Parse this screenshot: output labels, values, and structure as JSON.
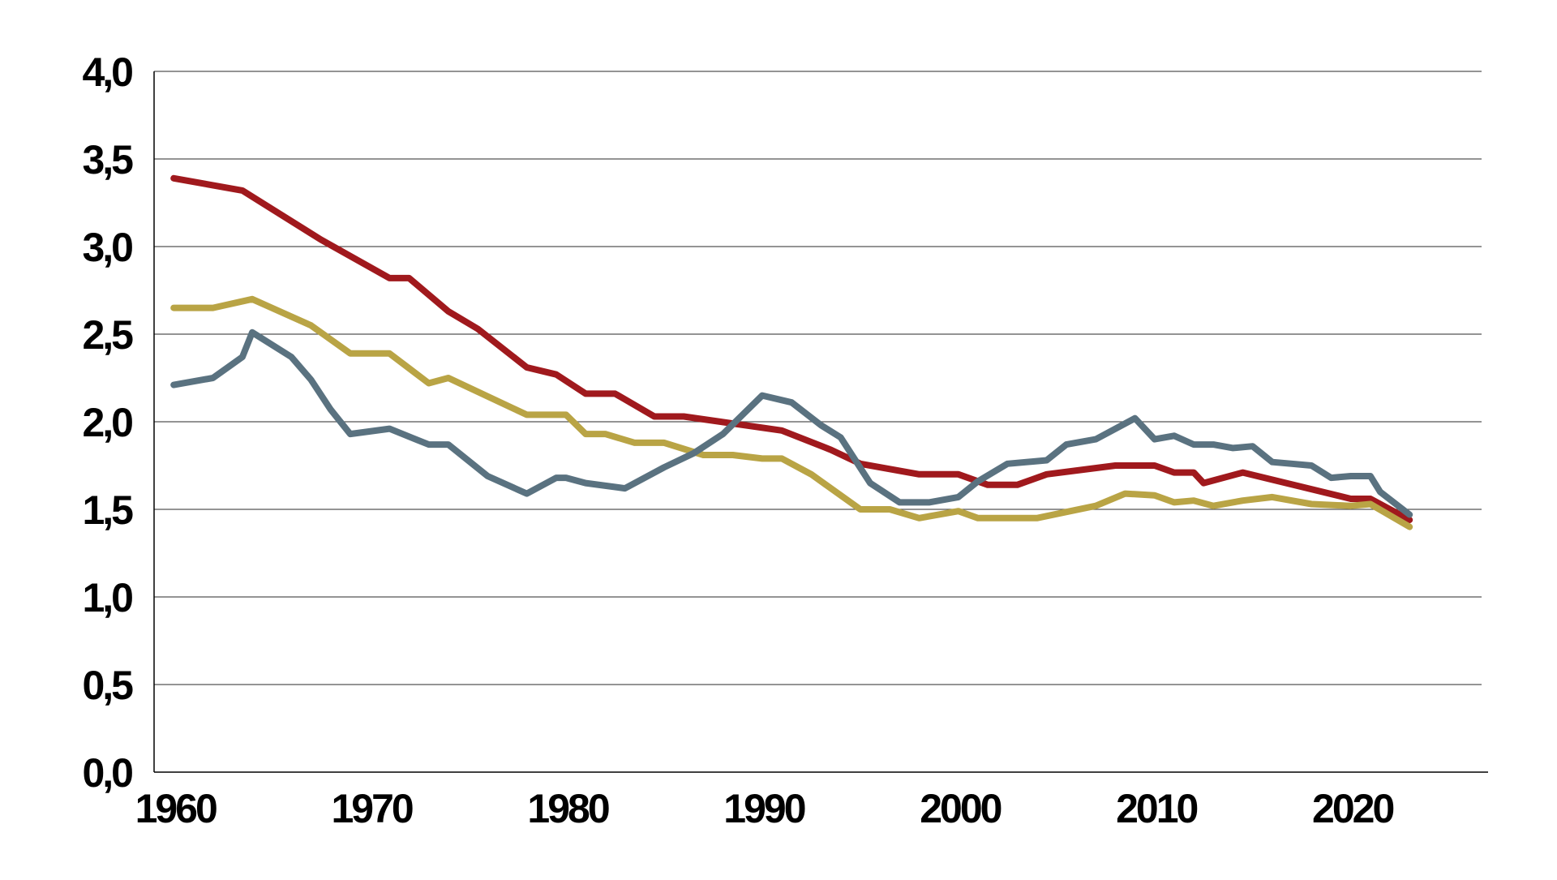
{
  "chart_data": {
    "type": "line",
    "title": "",
    "xlabel": "",
    "ylabel": "",
    "xlim": [
      1959,
      2027
    ],
    "ylim": [
      0,
      4
    ],
    "x_ticks": [
      1960,
      1970,
      1980,
      1990,
      2000,
      2010,
      2020
    ],
    "x_tick_labels": [
      "1960",
      "1970",
      "1980",
      "1990",
      "2000",
      "2010",
      "2020"
    ],
    "y_ticks": [
      0,
      0.5,
      1,
      1.5,
      2,
      2.5,
      3,
      3.5,
      4
    ],
    "y_tick_labels": [
      "0,0",
      "0,5",
      "1,0",
      "1,5",
      "2,0",
      "2,5",
      "3,0",
      "3,5",
      "4,0"
    ],
    "grid": true,
    "colors": {
      "grid": "#555555",
      "axis": "#000000",
      "series_red": "#A0191D",
      "series_gold": "#B9A445",
      "series_slate": "#5A7280"
    },
    "series": [
      {
        "color": "#A0191D",
        "x": [
          1960,
          1963.5,
          1967.5,
          1971,
          1972,
          1974,
          1975.5,
          1978,
          1979.5,
          1981,
          1982.5,
          1984.5,
          1986,
          1991,
          1993.5,
          1995,
          1998,
          2000,
          2001.5,
          2003,
          2004.5,
          2008,
          2010,
          2011,
          2012,
          2012.5,
          2014.5,
          2020,
          2021,
          2023
        ],
        "y": [
          3.39,
          3.32,
          3.04,
          2.82,
          2.82,
          2.63,
          2.53,
          2.31,
          2.27,
          2.16,
          2.16,
          2.03,
          2.03,
          1.95,
          1.84,
          1.76,
          1.7,
          1.7,
          1.64,
          1.64,
          1.7,
          1.75,
          1.75,
          1.71,
          1.71,
          1.65,
          1.71,
          1.56,
          1.56,
          1.44
        ]
      },
      {
        "color": "#B9A445",
        "x": [
          1960,
          1962,
          1964,
          1967,
          1969,
          1971,
          1973,
          1974,
          1978,
          1980,
          1981,
          1982,
          1983.5,
          1985,
          1987,
          1988.5,
          1990,
          1991,
          1992.5,
          1995,
          1996.5,
          1998,
          2000,
          2001,
          2004,
          2007,
          2008.5,
          2010,
          2011,
          2012,
          2013,
          2014.5,
          2016,
          2018,
          2020,
          2021,
          2023
        ],
        "y": [
          2.65,
          2.65,
          2.7,
          2.55,
          2.39,
          2.39,
          2.22,
          2.25,
          2.04,
          2.04,
          1.93,
          1.93,
          1.88,
          1.88,
          1.81,
          1.81,
          1.79,
          1.79,
          1.7,
          1.5,
          1.5,
          1.45,
          1.49,
          1.45,
          1.45,
          1.52,
          1.59,
          1.58,
          1.54,
          1.55,
          1.52,
          1.55,
          1.57,
          1.53,
          1.52,
          1.53,
          1.4
        ]
      },
      {
        "color": "#5A7280",
        "x": [
          1960,
          1962,
          1963.5,
          1964,
          1966,
          1967,
          1968,
          1969,
          1971,
          1973,
          1974,
          1976,
          1978,
          1979.5,
          1980,
          1981,
          1983,
          1985,
          1986.5,
          1988,
          1989,
          1990,
          1991.5,
          1993,
          1994,
          1995.5,
          1997,
          1998.5,
          2000,
          2001,
          2002.5,
          2004.5,
          2005.5,
          2007,
          2009,
          2010,
          2011,
          2012,
          2013,
          2014,
          2015,
          2016,
          2017,
          2018,
          2019,
          2020,
          2021,
          2021.5,
          2023
        ],
        "y": [
          2.21,
          2.25,
          2.37,
          2.51,
          2.37,
          2.24,
          2.07,
          1.93,
          1.96,
          1.87,
          1.87,
          1.69,
          1.59,
          1.68,
          1.68,
          1.65,
          1.62,
          1.74,
          1.82,
          1.93,
          2.04,
          2.15,
          2.11,
          1.98,
          1.91,
          1.65,
          1.54,
          1.54,
          1.57,
          1.66,
          1.76,
          1.78,
          1.87,
          1.9,
          2.02,
          1.9,
          1.92,
          1.87,
          1.87,
          1.85,
          1.86,
          1.77,
          1.76,
          1.75,
          1.68,
          1.69,
          1.69,
          1.6,
          1.47
        ]
      }
    ]
  }
}
